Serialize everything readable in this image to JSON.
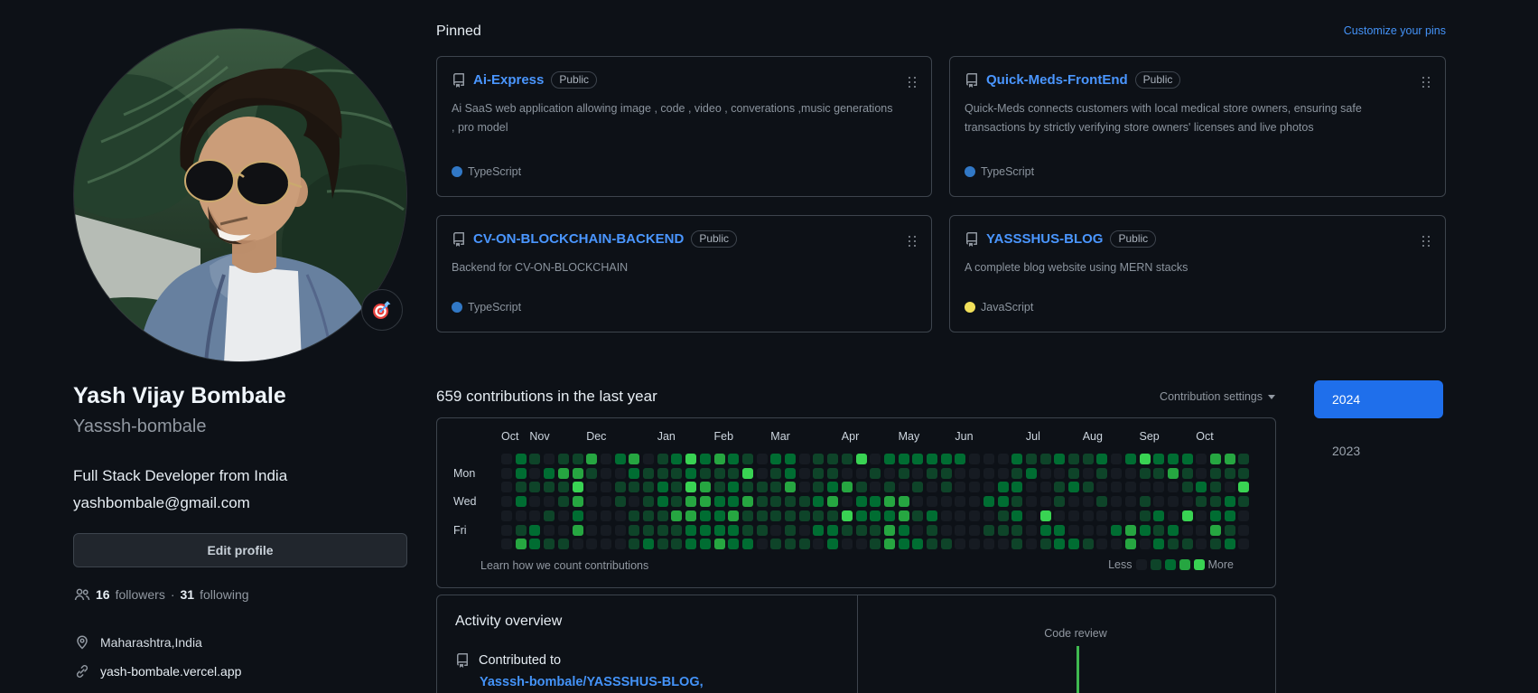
{
  "profile": {
    "name": "Yash Vijay Bombale",
    "username": "Yasssh-bombale",
    "bio_line1": "Full Stack Developer from India",
    "bio_line2": "yashbombale@gmail.com",
    "edit_button_label": "Edit profile",
    "followers_count": "16",
    "followers_label": "followers",
    "dot_separator": "·",
    "following_count": "31",
    "following_label": "following",
    "location": "Maharashtra,India",
    "website": "yash-bombale.vercel.app",
    "status_icon": "dart-target-emoji"
  },
  "pinned": {
    "title": "Pinned",
    "customize_link": "Customize your pins",
    "cards": [
      {
        "name": "Ai-Express",
        "badge": "Public",
        "description": "Ai SaaS web application allowing image , code , video , converations ,music generations , pro model",
        "language": "TypeScript",
        "language_color": "#3178c6"
      },
      {
        "name": "Quick-Meds-FrontEnd",
        "badge": "Public",
        "description": "Quick-Meds connects customers with local medical store owners, ensuring safe transactions by strictly verifying store owners' licenses and live photos",
        "language": "TypeScript",
        "language_color": "#3178c6"
      },
      {
        "name": "CV-ON-BLOCKCHAIN-BACKEND",
        "badge": "Public",
        "description": "Backend for CV-ON-BLOCKCHAIN",
        "language": "TypeScript",
        "language_color": "#3178c6"
      },
      {
        "name": "YASSSHUS-BLOG",
        "badge": "Public",
        "description": "A complete blog website using MERN stacks",
        "language": "JavaScript",
        "language_color": "#f1e05a"
      }
    ]
  },
  "contributions": {
    "heading": "659 contributions in the last year",
    "settings_label": "Contribution settings",
    "months": [
      {
        "label": "Oct",
        "col": 0
      },
      {
        "label": "Nov",
        "col": 2
      },
      {
        "label": "Dec",
        "col": 6
      },
      {
        "label": "Jan",
        "col": 11
      },
      {
        "label": "Feb",
        "col": 15
      },
      {
        "label": "Mar",
        "col": 19
      },
      {
        "label": "Apr",
        "col": 24
      },
      {
        "label": "May",
        "col": 28
      },
      {
        "label": "Jun",
        "col": 32
      },
      {
        "label": "Jul",
        "col": 37
      },
      {
        "label": "Aug",
        "col": 41
      },
      {
        "label": "Sep",
        "col": 45
      },
      {
        "label": "Oct",
        "col": 49
      }
    ],
    "day_labels": [
      {
        "label": "Mon",
        "row": 1
      },
      {
        "label": "Wed",
        "row": 3
      },
      {
        "label": "Fri",
        "row": 5
      }
    ],
    "level_colors": [
      "#161b22",
      "#0e4429",
      "#006d32",
      "#26a641",
      "#39d353"
    ],
    "grid_rows": [
      "02101130230124232102201114022222200021121120242220331",
      "02023310021112111401201100101011000012001010011310111",
      "01111400111214312111301231010101000220012100000012104",
      "02001300101213322311112302233000002210010010010001121",
      "00010200011133223111111142223120000120400000012040220",
      "01200300011112222110102211132010001110220002321200310",
      "03211000012112232201110200132211000010122100302110120"
    ],
    "footer_link": "Learn how we count contributions",
    "legend_less": "Less",
    "legend_more": "More"
  },
  "activity": {
    "heading": "Activity overview",
    "contributed_label": "Contributed to",
    "contributed_repo": "Yasssh-bombale/YASSSHUS-BLOG,",
    "axis_label": "Code review",
    "axis_color": "#3fb950"
  },
  "years": {
    "active": "2024",
    "inactive": "2023"
  },
  "colors": {
    "background": "#0d1117",
    "card_border": "#3d444d",
    "link_blue": "#4493f8",
    "active_year_bg": "#1f6feb",
    "text_primary": "#e6edf3",
    "text_muted": "#9198a1"
  }
}
